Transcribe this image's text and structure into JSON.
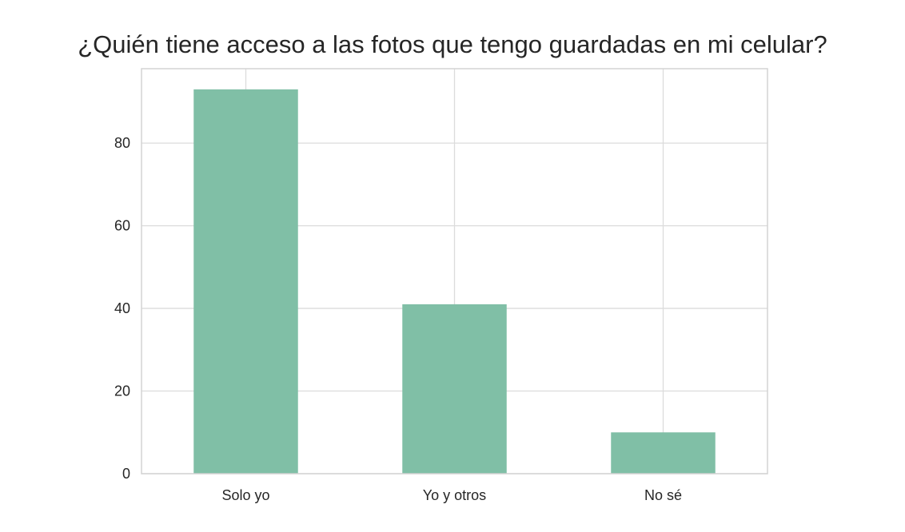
{
  "chart_data": {
    "type": "bar",
    "title": "¿Quién tiene acceso a las fotos que tengo guardadas en mi celular?",
    "xlabel": "",
    "ylabel": "",
    "categories": [
      "Solo yo",
      "Yo y otros",
      "No sé"
    ],
    "values": [
      93,
      41,
      10
    ],
    "ylim": [
      0,
      98
    ],
    "yticks": [
      0,
      20,
      40,
      60,
      80
    ],
    "grid": true,
    "bar_color": "#80bfa6",
    "grid_color": "#dcdcdc",
    "frame_color": "#d3d3d3",
    "text_color": "#262626"
  }
}
